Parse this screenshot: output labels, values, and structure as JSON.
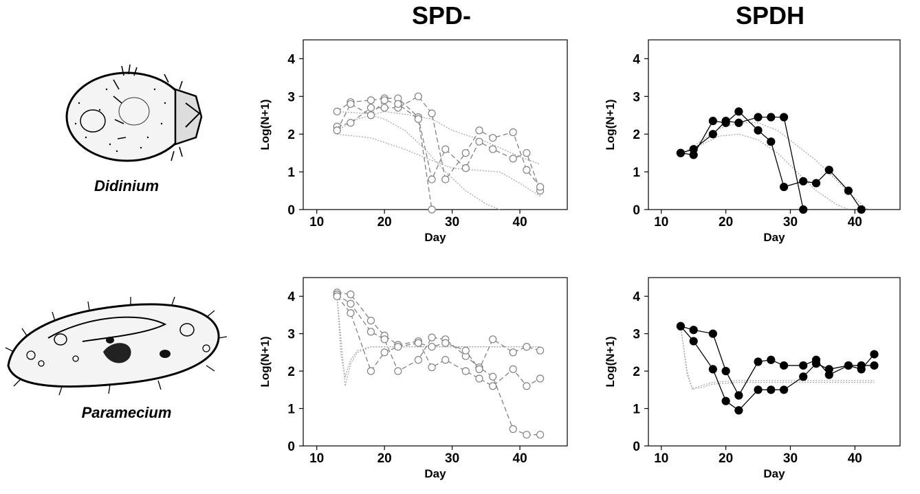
{
  "columns": {
    "left_title": "SPD-",
    "right_title": "SPDH"
  },
  "organisms": {
    "top_label": "Didinium",
    "bottom_label": "Paramecium"
  },
  "axis": {
    "xlabel": "Day",
    "ylabel": "Log(N+1)"
  },
  "chart_data": [
    {
      "type": "line",
      "panel": "Didinium SPD-",
      "xlabel": "Day",
      "ylabel": "Log(N+1)",
      "xlim": [
        8,
        47
      ],
      "ylim": [
        0,
        4.5
      ],
      "xticks": [
        10,
        20,
        30,
        40
      ],
      "yticks": [
        0,
        1,
        2,
        3,
        4
      ],
      "marker": "open-circle",
      "color": "#808080",
      "series": [
        {
          "x": [
            13,
            15,
            18,
            20,
            22,
            25,
            27,
            29,
            32,
            34,
            36,
            39,
            41,
            43
          ],
          "y": [
            2.6,
            2.85,
            2.9,
            2.95,
            2.95,
            2.45,
            0.8,
            1.6,
            1.1,
            1.8,
            1.6,
            1.35,
            1.5,
            0.5
          ]
        },
        {
          "x": [
            13,
            15,
            18,
            20,
            22,
            25,
            27,
            29,
            32,
            34,
            36,
            39,
            41,
            43
          ],
          "y": [
            2.2,
            2.3,
            2.7,
            2.7,
            2.7,
            3.0,
            2.55,
            0.8,
            1.5,
            2.1,
            1.9,
            2.05,
            1.05,
            0.6
          ]
        },
        {
          "x": [
            13,
            15,
            18,
            20,
            22,
            25,
            27
          ],
          "y": [
            2.1,
            2.8,
            2.5,
            2.9,
            2.8,
            2.4,
            0
          ]
        }
      ],
      "fits": [
        {
          "x": [
            13,
            16,
            20,
            24,
            27,
            30,
            35,
            40,
            43
          ],
          "y": [
            2.1,
            2.4,
            2.6,
            2.5,
            2.4,
            2.1,
            1.8,
            1.4,
            1.2
          ]
        },
        {
          "x": [
            13,
            18,
            23,
            27,
            30,
            33,
            37,
            40,
            43
          ],
          "y": [
            2.0,
            1.9,
            1.6,
            1.3,
            1.1,
            1.05,
            1.0,
            0.7,
            0.35
          ]
        },
        {
          "x": [
            13,
            17,
            20,
            23,
            26,
            29,
            32,
            35,
            37
          ],
          "y": [
            2.6,
            2.55,
            2.4,
            2.1,
            1.6,
            1.0,
            0.5,
            0.15,
            0
          ]
        }
      ]
    },
    {
      "type": "line",
      "panel": "Didinium SPDH",
      "xlabel": "Day",
      "ylabel": "Log(N+1)",
      "xlim": [
        8,
        47
      ],
      "ylim": [
        0,
        4.5
      ],
      "xticks": [
        10,
        20,
        30,
        40
      ],
      "yticks": [
        0,
        1,
        2,
        3,
        4
      ],
      "marker": "filled-circle",
      "color": "#000000",
      "series": [
        {
          "x": [
            13,
            15,
            18,
            20,
            22,
            25,
            27,
            29,
            32,
            34,
            36,
            39,
            41
          ],
          "y": [
            1.5,
            1.45,
            2.35,
            2.3,
            2.6,
            2.1,
            1.8,
            0.6,
            0.75,
            0.7,
            1.05,
            0.5,
            0
          ]
        },
        {
          "x": [
            13,
            15,
            18,
            20,
            22,
            25,
            27,
            29,
            32
          ],
          "y": [
            1.5,
            1.6,
            2.0,
            2.35,
            2.3,
            2.45,
            2.45,
            2.45,
            0
          ]
        }
      ],
      "fits": [
        {
          "x": [
            13,
            16,
            19,
            22,
            25,
            28,
            31,
            34,
            37,
            40,
            42
          ],
          "y": [
            1.45,
            1.8,
            2.15,
            2.3,
            2.3,
            2.1,
            1.7,
            1.3,
            0.8,
            0.3,
            0
          ]
        },
        {
          "x": [
            13,
            16,
            19,
            22,
            25,
            28,
            31,
            34,
            37,
            39
          ],
          "y": [
            1.45,
            1.7,
            1.95,
            2.0,
            1.85,
            1.5,
            1.0,
            0.5,
            0.15,
            0
          ]
        }
      ]
    },
    {
      "type": "line",
      "panel": "Paramecium SPD-",
      "xlabel": "Day",
      "ylabel": "Log(N+1)",
      "xlim": [
        8,
        47
      ],
      "ylim": [
        0,
        4.5
      ],
      "xticks": [
        10,
        20,
        30,
        40
      ],
      "yticks": [
        0,
        1,
        2,
        3,
        4
      ],
      "marker": "open-circle",
      "color": "#808080",
      "series": [
        {
          "x": [
            13,
            15,
            18,
            20,
            22,
            25,
            27,
            29,
            32,
            34,
            36,
            39,
            41,
            43
          ],
          "y": [
            4.1,
            4.05,
            3.35,
            2.95,
            2.7,
            2.8,
            2.1,
            2.3,
            2.0,
            1.8,
            1.6,
            2.05,
            1.6,
            1.8
          ]
        },
        {
          "x": [
            13,
            15,
            18,
            20,
            22,
            25,
            27,
            29,
            32,
            34,
            36,
            39,
            41,
            43
          ],
          "y": [
            4.05,
            3.8,
            3.05,
            2.85,
            2.0,
            2.3,
            2.9,
            2.85,
            2.4,
            2.1,
            1.85,
            0.45,
            0.3,
            0.3
          ]
        },
        {
          "x": [
            13,
            15,
            18,
            20,
            22,
            25,
            27,
            29,
            32,
            34,
            36,
            39,
            41,
            43
          ],
          "y": [
            4.0,
            3.55,
            2.0,
            2.5,
            2.65,
            2.75,
            2.65,
            2.75,
            2.55,
            2.05,
            2.85,
            2.5,
            2.65,
            2.55
          ]
        }
      ],
      "fits": [
        {
          "x": [
            13,
            13.6,
            14.2,
            15,
            16,
            18,
            22,
            30,
            43
          ],
          "y": [
            4.0,
            2.8,
            1.6,
            2.2,
            2.5,
            2.65,
            2.65,
            2.65,
            2.65
          ]
        },
        {
          "x": [
            13,
            13.6,
            14.2,
            15,
            16,
            18,
            22,
            30,
            43
          ],
          "y": [
            4.0,
            2.4,
            1.85,
            2.3,
            2.55,
            2.65,
            2.65,
            2.65,
            2.65
          ]
        }
      ]
    },
    {
      "type": "line",
      "panel": "Paramecium SPDH",
      "xlabel": "Day",
      "ylabel": "Log(N+1)",
      "xlim": [
        8,
        47
      ],
      "ylim": [
        0,
        4.5
      ],
      "xticks": [
        10,
        20,
        30,
        40
      ],
      "yticks": [
        0,
        1,
        2,
        3,
        4
      ],
      "marker": "filled-circle",
      "color": "#000000",
      "series": [
        {
          "x": [
            13,
            15,
            18,
            20,
            22,
            25,
            27,
            29,
            32,
            34,
            36,
            39,
            41,
            43
          ],
          "y": [
            3.2,
            3.1,
            3.0,
            2.0,
            1.35,
            2.25,
            2.3,
            2.15,
            2.15,
            2.3,
            1.9,
            2.15,
            2.05,
            2.45
          ]
        },
        {
          "x": [
            13,
            15,
            18,
            20,
            22,
            25,
            27,
            29,
            32,
            34,
            36,
            39,
            41,
            43
          ],
          "y": [
            3.2,
            2.8,
            2.05,
            1.2,
            0.95,
            1.5,
            1.5,
            1.5,
            1.85,
            2.2,
            2.05,
            2.15,
            2.15,
            2.15
          ]
        }
      ],
      "fits": [
        {
          "x": [
            13,
            14,
            14.8,
            16,
            18,
            22,
            30,
            43
          ],
          "y": [
            3.2,
            2.0,
            1.5,
            1.6,
            1.7,
            1.75,
            1.75,
            1.75
          ]
        },
        {
          "x": [
            13,
            14,
            14.8,
            16,
            18,
            22,
            30,
            43
          ],
          "y": [
            3.2,
            1.9,
            1.55,
            1.55,
            1.65,
            1.7,
            1.7,
            1.7
          ]
        }
      ]
    }
  ]
}
